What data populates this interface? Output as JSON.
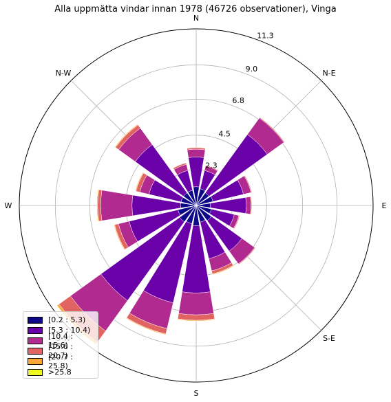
{
  "chart_data": {
    "type": "windrose",
    "title": "Alla uppmätta vindar innan 1978 (46726 observationer), Vinga",
    "directions": [
      "N",
      "N-NE",
      "N-E",
      "E-NE",
      "E",
      "E-SE",
      "S-E",
      "S-SE",
      "S",
      "S-SW",
      "S-W",
      "W-SW",
      "W",
      "W-NW",
      "N-W",
      "N-NW"
    ],
    "direction_labels": [
      "N",
      "N-E",
      "E",
      "S-E",
      "S",
      "S-W",
      "W",
      "N-W"
    ],
    "radial_ticks": [
      "2.3",
      "4.5",
      "6.8",
      "9.0",
      "11.3"
    ],
    "rmax": 11.3,
    "grid": true,
    "legend_position": "lower-left",
    "series": [
      {
        "name": "[0.2 : 5.3)",
        "color": "#0d0887",
        "values": [
          1.2,
          1.1,
          1.0,
          1.1,
          0.9,
          1.0,
          1.2,
          1.1,
          1.3,
          1.2,
          1.3,
          1.2,
          1.0,
          1.0,
          1.0,
          1.0
        ]
      },
      {
        "name": "[5.3 : 10.4)",
        "color": "#6a00a8",
        "values": [
          1.9,
          1.2,
          4.6,
          2.0,
          2.3,
          1.5,
          2.4,
          2.4,
          4.3,
          5.2,
          6.2,
          3.2,
          3.1,
          2.1,
          3.8,
          1.3
        ]
      },
      {
        "name": "[10.4 : 15.6)",
        "color": "#b12a90",
        "values": [
          0.5,
          0.3,
          1.3,
          0.5,
          0.3,
          0.3,
          1.0,
          0.8,
          1.4,
          1.7,
          2.4,
          0.7,
          2.0,
          0.6,
          1.3,
          0.4
        ]
      },
      {
        "name": "[15.6 : 20.7)",
        "color": "#e16462",
        "values": [
          0.1,
          0.05,
          0.05,
          0.05,
          0.05,
          0.05,
          0.05,
          0.2,
          0.35,
          0.35,
          0.9,
          0.25,
          0.2,
          0.25,
          0.25,
          0.1
        ]
      },
      {
        "name": "[20.7 : 25.8)",
        "color": "#fca636",
        "values": [
          0.02,
          0.0,
          0.0,
          0.0,
          0.0,
          0.0,
          0.0,
          0.05,
          0.05,
          0.05,
          0.15,
          0.05,
          0.05,
          0.05,
          0.05,
          0.02
        ]
      },
      {
        "name": ">25.8",
        "color": "#f0f921",
        "values": [
          0,
          0,
          0,
          0,
          0,
          0,
          0,
          0,
          0,
          0,
          0,
          0,
          0,
          0,
          0,
          0
        ]
      }
    ]
  }
}
